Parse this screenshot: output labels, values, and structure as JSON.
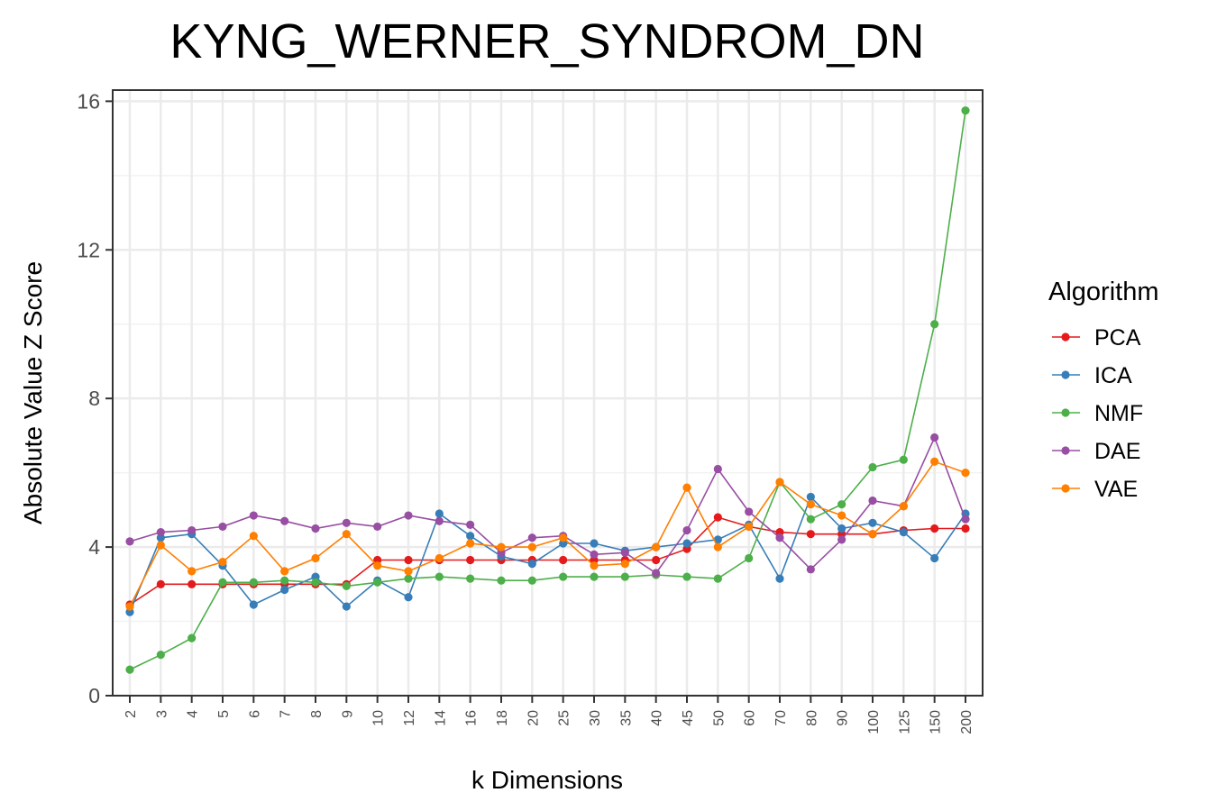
{
  "chart_data": {
    "type": "line",
    "title": "KYNG_WERNER_SYNDROM_DN",
    "xlabel": "k Dimensions",
    "ylabel": "Absolute Value Z Score",
    "ylim": [
      0,
      16.3
    ],
    "yticks": [
      "0",
      "4",
      "8",
      "12",
      "16"
    ],
    "grid": true,
    "legend_title": "Algorithm",
    "legend_position": "right",
    "categories": [
      "2",
      "3",
      "4",
      "5",
      "6",
      "7",
      "8",
      "9",
      "10",
      "12",
      "14",
      "16",
      "18",
      "20",
      "25",
      "30",
      "35",
      "40",
      "45",
      "50",
      "60",
      "70",
      "80",
      "90",
      "100",
      "125",
      "150",
      "200"
    ],
    "series": [
      {
        "name": "PCA",
        "color": "#E41A1C",
        "values": [
          2.45,
          3.0,
          3.0,
          3.0,
          3.0,
          3.0,
          3.0,
          3.0,
          3.65,
          3.65,
          3.65,
          3.65,
          3.65,
          3.65,
          3.65,
          3.65,
          3.65,
          3.65,
          3.95,
          4.8,
          4.55,
          4.4,
          4.35,
          4.35,
          4.35,
          4.45,
          4.5,
          4.5
        ]
      },
      {
        "name": "ICA",
        "color": "#377EB8",
        "values": [
          2.25,
          4.25,
          4.35,
          3.5,
          2.45,
          2.85,
          3.2,
          2.4,
          3.1,
          2.65,
          4.9,
          4.3,
          3.75,
          3.55,
          4.1,
          4.1,
          3.9,
          4.0,
          4.1,
          4.2,
          4.6,
          3.15,
          5.35,
          4.5,
          4.65,
          4.4,
          3.7,
          4.9
        ]
      },
      {
        "name": "NMF",
        "color": "#4DAF4A",
        "values": [
          0.7,
          1.1,
          1.55,
          3.05,
          3.05,
          3.1,
          3.05,
          2.95,
          3.05,
          3.15,
          3.2,
          3.15,
          3.1,
          3.1,
          3.2,
          3.2,
          3.2,
          3.25,
          3.2,
          3.15,
          3.7,
          5.75,
          4.75,
          5.15,
          6.15,
          6.35,
          10.0,
          15.75
        ]
      },
      {
        "name": "DAE",
        "color": "#984EA3",
        "values": [
          4.15,
          4.4,
          4.45,
          4.55,
          4.85,
          4.7,
          4.5,
          4.65,
          4.55,
          4.85,
          4.7,
          4.6,
          3.85,
          4.25,
          4.3,
          3.8,
          3.85,
          3.3,
          4.45,
          6.1,
          4.95,
          4.25,
          3.4,
          4.2,
          5.25,
          5.1,
          6.95,
          4.75
        ]
      },
      {
        "name": "VAE",
        "color": "#FF7F00",
        "values": [
          2.4,
          4.05,
          3.35,
          3.6,
          4.3,
          3.35,
          3.7,
          4.35,
          3.5,
          3.35,
          3.7,
          4.1,
          4.0,
          4.0,
          4.25,
          3.5,
          3.55,
          4.0,
          5.6,
          4.0,
          4.55,
          5.75,
          5.15,
          4.85,
          4.35,
          5.1,
          6.3,
          6.0
        ]
      }
    ]
  }
}
